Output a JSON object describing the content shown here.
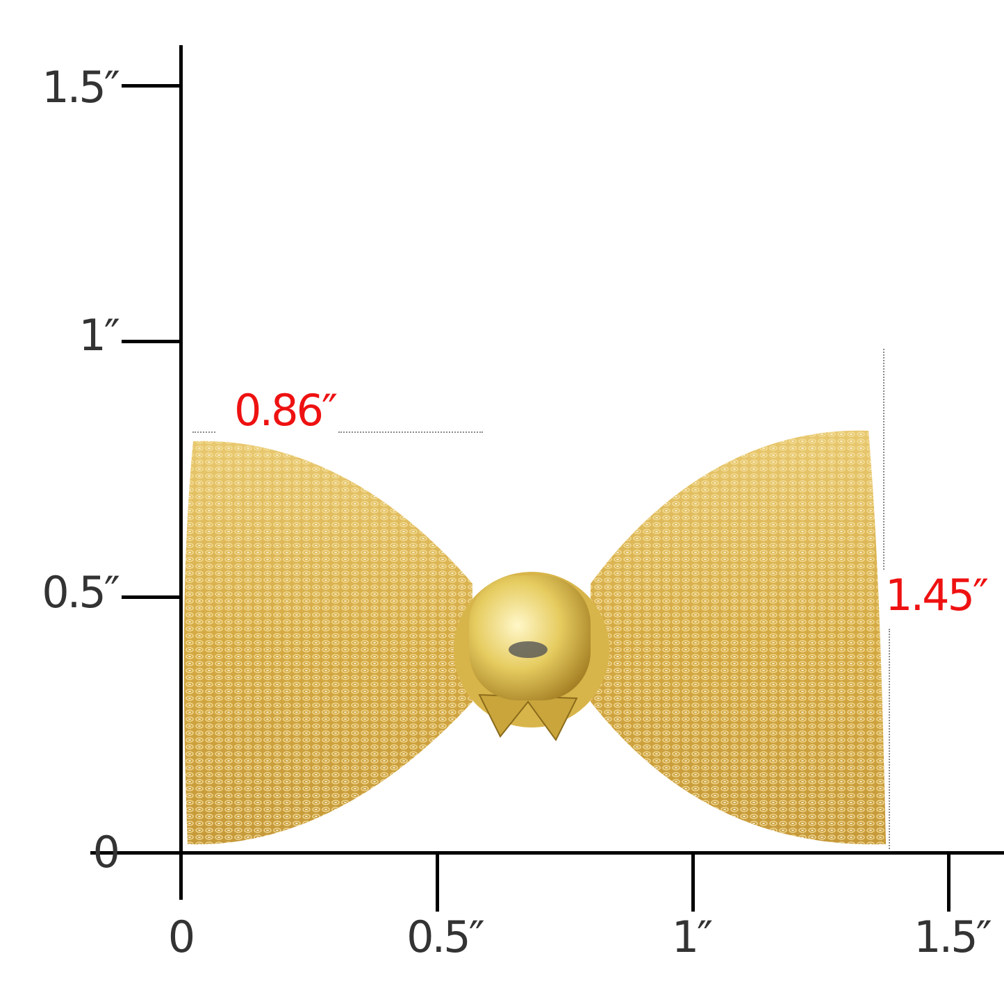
{
  "axes": {
    "y_ticks": [
      "1.5″",
      "1″",
      "0.5″",
      "0"
    ],
    "x_ticks": [
      "0",
      "0.5″",
      "1″",
      "1.5″"
    ]
  },
  "dimensions": {
    "height_label": "0.86″",
    "width_label": "1.45″",
    "color": "#ee1111"
  },
  "product": {
    "name_icon": "gold-mesh-bow-pin",
    "color": "#d9b24a"
  }
}
